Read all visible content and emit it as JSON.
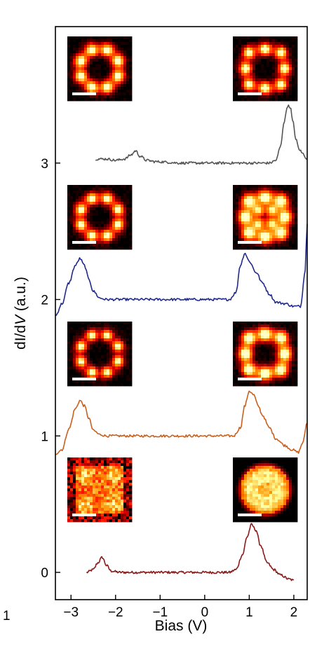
{
  "chart_data": {
    "type": "line",
    "xlabel": "Bias (V)",
    "ylabel_prefix": "dI/d",
    "ylabel_italic": "V",
    "ylabel_suffix": " (a.u.)",
    "xlim": [
      -3.35,
      2.3
    ],
    "ylim": [
      -0.2,
      4.0
    ],
    "x_ticks": [
      -3,
      -2,
      -1,
      0,
      1,
      2
    ],
    "x_tick_labels": [
      "−3",
      "−2",
      "−1",
      "0",
      "1",
      "2"
    ],
    "y_ticks": [
      0,
      1,
      2,
      3
    ],
    "y_tick_labels": [
      "0",
      "1",
      "2",
      "3"
    ],
    "grid": false,
    "legend": "none",
    "stray_label": "1",
    "series": [
      {
        "color": "#8b1a1a",
        "x": [
          -2.65,
          -2.5,
          -2.4,
          -2.3,
          -2.2,
          -2.1,
          -1.9,
          -1.0,
          0.0,
          0.55,
          0.7,
          0.85,
          0.95,
          1.05,
          1.15,
          1.25,
          1.4,
          1.55,
          1.7,
          1.9,
          2.0
        ],
        "y": [
          0.0,
          0.02,
          0.07,
          0.11,
          0.05,
          0.01,
          0.0,
          0.0,
          0.0,
          0.0,
          0.02,
          0.13,
          0.26,
          0.35,
          0.31,
          0.2,
          0.07,
          0.02,
          -0.02,
          -0.05,
          -0.06
        ]
      },
      {
        "color": "#c8601e",
        "x": [
          -3.35,
          -3.2,
          -3.05,
          -2.9,
          -2.8,
          -2.7,
          -2.6,
          -2.5,
          -2.35,
          -2.2,
          -2.0,
          -1.0,
          0.0,
          0.65,
          0.8,
          0.9,
          1.0,
          1.1,
          1.2,
          1.3,
          1.45,
          1.6,
          1.8,
          1.95,
          2.1,
          2.2,
          2.3
        ],
        "y": [
          0.87,
          0.9,
          1.05,
          1.2,
          1.26,
          1.22,
          1.13,
          1.04,
          1.01,
          1.0,
          1.0,
          1.0,
          1.0,
          1.0,
          1.06,
          1.22,
          1.33,
          1.3,
          1.22,
          1.15,
          1.06,
          0.98,
          0.93,
          0.9,
          0.88,
          0.95,
          1.1
        ]
      },
      {
        "color": "#1f2a8a",
        "x": [
          -3.35,
          -3.2,
          -3.05,
          -2.9,
          -2.8,
          -2.7,
          -2.6,
          -2.5,
          -2.35,
          -2.2,
          -2.0,
          -1.0,
          0.0,
          0.55,
          0.7,
          0.8,
          0.9,
          1.0,
          1.15,
          1.3,
          1.45,
          1.6,
          1.8,
          2.0,
          2.15,
          2.25,
          2.3
        ],
        "y": [
          1.88,
          1.97,
          2.12,
          2.25,
          2.3,
          2.25,
          2.15,
          2.06,
          2.01,
          2.0,
          2.0,
          2.0,
          2.0,
          2.0,
          2.05,
          2.25,
          2.34,
          2.28,
          2.2,
          2.12,
          2.04,
          1.98,
          1.97,
          1.95,
          1.95,
          2.2,
          2.55
        ]
      },
      {
        "color": "#555555",
        "x": [
          -2.45,
          -2.2,
          -2.0,
          -1.8,
          -1.65,
          -1.55,
          -1.45,
          -1.3,
          -1.1,
          -0.5,
          0.0,
          0.5,
          1.0,
          1.45,
          1.6,
          1.7,
          1.78,
          1.86,
          1.92,
          1.98,
          2.05,
          2.12,
          2.2,
          2.3
        ],
        "y": [
          3.03,
          3.03,
          3.02,
          3.03,
          3.06,
          3.09,
          3.05,
          3.02,
          3.01,
          3.0,
          3.0,
          3.0,
          3.0,
          3.0,
          3.02,
          3.12,
          3.3,
          3.42,
          3.41,
          3.3,
          3.17,
          3.1,
          3.07,
          3.03
        ]
      }
    ]
  },
  "insets": [
    {
      "id": "inset-top-left",
      "kind": "ring-blobs",
      "gap": 0,
      "rot": 0.39,
      "blobR": 0.12,
      "glow": 0.55
    },
    {
      "id": "inset-top-right",
      "kind": "ring-lattice",
      "gap": 1,
      "rot": 0.0,
      "blobR": 0.11,
      "glow": 0.6
    },
    {
      "id": "inset-second-left",
      "kind": "ring-blobs",
      "gap": 0,
      "rot": 0.39,
      "blobR": 0.11,
      "glow": 0.5
    },
    {
      "id": "inset-second-right",
      "kind": "cross-blobs",
      "gap": 0,
      "rot": 0.0,
      "blobR": 0.14,
      "glow": 0.7
    },
    {
      "id": "inset-third-left",
      "kind": "ring-blobs",
      "gap": 1,
      "rot": 0.39,
      "blobR": 0.1,
      "glow": 0.45
    },
    {
      "id": "inset-third-right",
      "kind": "ring-lattice",
      "gap": 0,
      "rot": 0.0,
      "blobR": 0.13,
      "glow": 0.85
    },
    {
      "id": "inset-bottom-left",
      "kind": "noisy-square",
      "gap": 0,
      "rot": 0.0,
      "blobR": 0.2,
      "glow": 0.75
    },
    {
      "id": "inset-bottom-right",
      "kind": "disc",
      "gap": 0,
      "rot": 0.0,
      "blobR": 0.4,
      "glow": 1.0
    }
  ]
}
